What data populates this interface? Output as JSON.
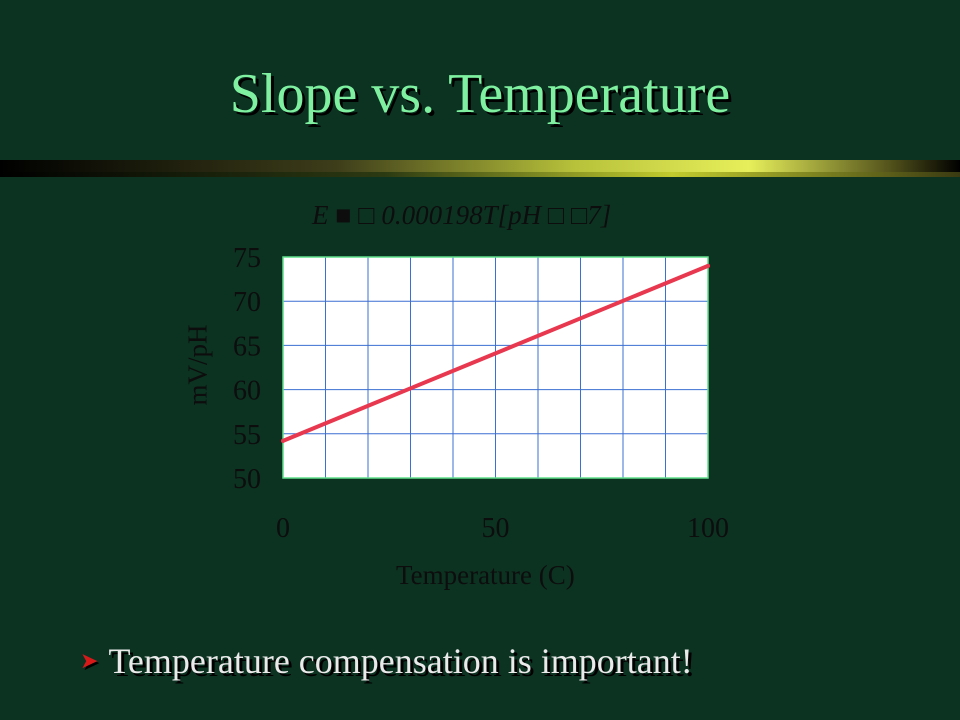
{
  "slide": {
    "title": "Slope vs. Temperature",
    "formula": "E ■ □ 0.000198T[pH □ □7]",
    "bullet": "Temperature compensation is important!",
    "bullet_icon": "arrowhead-bullet-icon"
  },
  "colors": {
    "background": "#0c3322",
    "title": "#7ef0a0",
    "plot_background": "#ffffff",
    "grid": "#3b6fd3",
    "plot_border": "#5fe08a",
    "line": "#e8384f",
    "bullet_icon": "#d61a1a",
    "text": "#0d0d0d"
  },
  "chart_data": {
    "type": "line",
    "title": "",
    "xlabel": "Temperature (C)",
    "ylabel": "mV/pH",
    "xlim": [
      0,
      100
    ],
    "ylim": [
      50,
      75
    ],
    "x_ticks": [
      0,
      50,
      100
    ],
    "y_ticks": [
      50,
      55,
      60,
      65,
      70,
      75
    ],
    "x_minor_grid_step": 10,
    "y_grid_step": 5,
    "grid": true,
    "legend": "none",
    "series": [
      {
        "x": [
          0,
          100
        ],
        "values": [
          54.2,
          74.0
        ]
      }
    ]
  }
}
